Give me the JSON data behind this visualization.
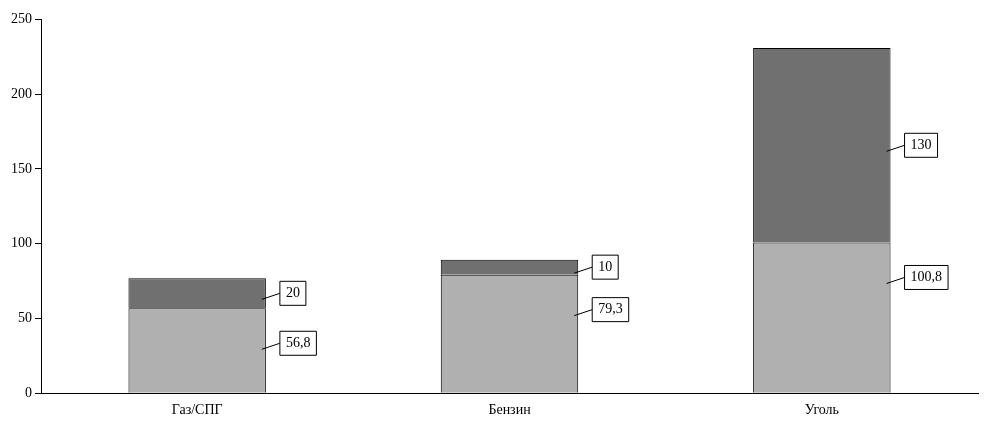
{
  "chart_data": {
    "type": "bar",
    "stacked": true,
    "categories": [
      "Газ/СПГ",
      "Бензин",
      "Уголь"
    ],
    "series": [
      {
        "color": "#b0b0b0",
        "values": [
          56.8,
          79.3,
          100.8
        ],
        "value_labels": [
          "56,8",
          "79,3",
          "100,8"
        ]
      },
      {
        "color": "#707070",
        "values": [
          20,
          10,
          130
        ],
        "value_labels": [
          "20",
          "10",
          "130"
        ]
      }
    ],
    "ylim": [
      0,
      250
    ],
    "yticks": [
      0,
      50,
      100,
      150,
      200,
      250
    ],
    "grid": false,
    "legend": false
  }
}
